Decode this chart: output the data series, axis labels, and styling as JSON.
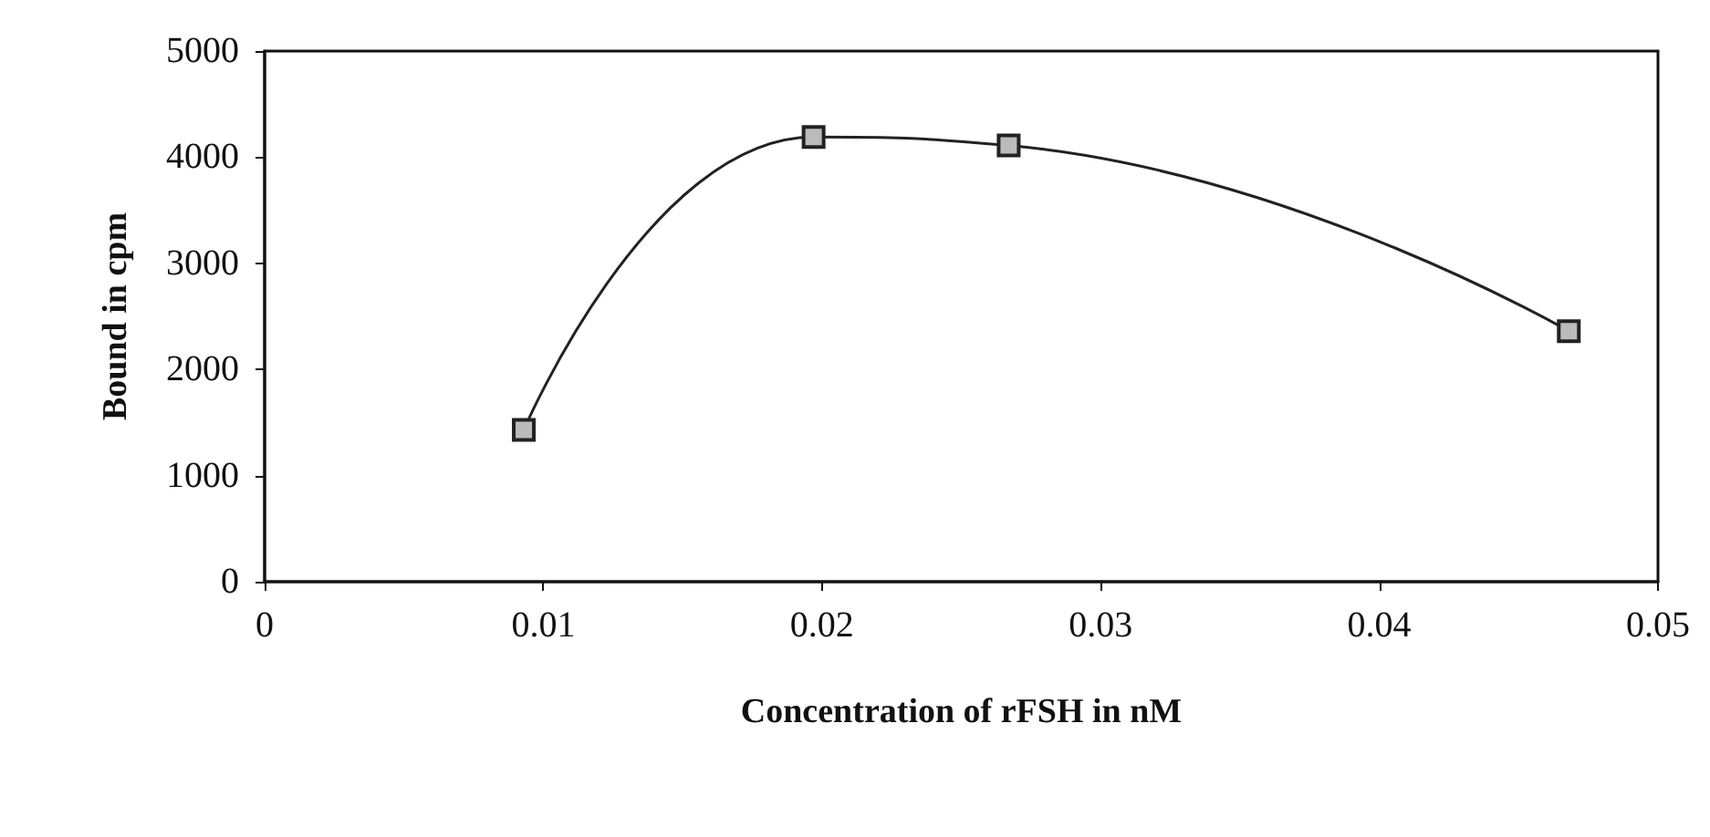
{
  "chart_data": {
    "type": "line",
    "xlabel": "Concentration of rFSH in nM",
    "ylabel": "Bound in cpm",
    "x": [
      0.0093,
      0.0197,
      0.0267,
      0.0468
    ],
    "series": [
      {
        "color": "#222222",
        "values": [
          1430,
          4190,
          4110,
          2360
        ]
      }
    ],
    "xlim": [
      0,
      0.05
    ],
    "xticks": [
      0,
      0.01,
      0.02,
      0.03,
      0.04,
      0.05
    ],
    "ylim": [
      0,
      5000
    ],
    "yticks": [
      0,
      1000,
      2000,
      3000,
      4000,
      5000
    ],
    "grid": false,
    "marker": "square",
    "line_style": "solid"
  }
}
